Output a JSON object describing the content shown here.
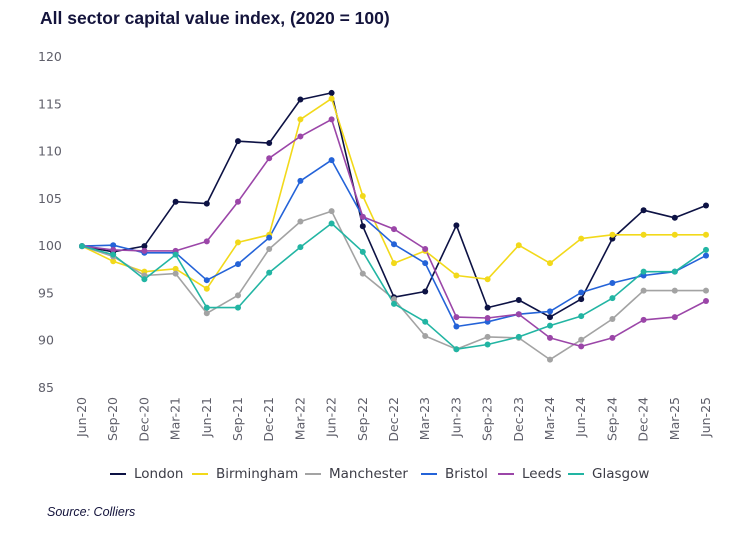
{
  "title": "All sector capital value index, (2020 = 100)",
  "source": "Source: Colliers",
  "chart_data": {
    "type": "line",
    "title": "All sector capital value index, (2020 = 100)",
    "xlabel": "",
    "ylabel": "",
    "ylim": [
      85,
      120
    ],
    "yticks": [
      85,
      90,
      95,
      100,
      105,
      110,
      115,
      120
    ],
    "grid": false,
    "legend_position": "bottom",
    "x": [
      "Jun-20",
      "Sep-20",
      "Dec-20",
      "Mar-21",
      "Jun-21",
      "Sep-21",
      "Dec-21",
      "Mar-22",
      "Jun-22",
      "Sep-22",
      "Dec-22",
      "Mar-23",
      "Jun-23",
      "Sep-23",
      "Dec-23",
      "Mar-24",
      "Jun-24",
      "Sep-24",
      "Dec-24",
      "Mar-25",
      "Jun-25"
    ],
    "series": [
      {
        "name": "London",
        "color": "#0d1244",
        "values": [
          100,
          99.4,
          100.0,
          104.7,
          104.5,
          111.1,
          110.9,
          115.5,
          116.2,
          102.1,
          94.6,
          95.2,
          102.2,
          93.5,
          94.3,
          92.5,
          94.4,
          100.8,
          103.8,
          103.0,
          104.3
        ]
      },
      {
        "name": "Birmingham",
        "color": "#f2d91a",
        "values": [
          100,
          98.4,
          97.3,
          97.6,
          95.5,
          100.4,
          101.2,
          113.4,
          115.6,
          105.3,
          98.2,
          99.5,
          96.9,
          96.5,
          100.1,
          98.2,
          100.8,
          101.2,
          101.2,
          101.2,
          101.2
        ]
      },
      {
        "name": "Manchester",
        "color": "#a3a3a3",
        "values": [
          100,
          98.9,
          96.9,
          97.1,
          92.9,
          94.8,
          99.7,
          102.6,
          103.7,
          97.1,
          94.4,
          90.5,
          89.1,
          90.4,
          90.3,
          88.0,
          90.1,
          92.3,
          95.3,
          95.3,
          95.3
        ]
      },
      {
        "name": "Bristol",
        "color": "#2463d8",
        "values": [
          100,
          100.1,
          99.3,
          99.3,
          96.4,
          98.1,
          100.9,
          106.9,
          109.1,
          103.1,
          100.2,
          98.2,
          91.5,
          92.0,
          92.8,
          93.1,
          95.1,
          96.1,
          96.9,
          97.3,
          99.0
        ]
      },
      {
        "name": "Leeds",
        "color": "#9b46a8",
        "values": [
          100,
          99.6,
          99.5,
          99.5,
          100.5,
          104.7,
          109.3,
          111.6,
          113.4,
          103.1,
          101.8,
          99.7,
          92.5,
          92.4,
          92.8,
          90.3,
          89.4,
          90.3,
          92.2,
          92.5,
          94.2
        ]
      },
      {
        "name": "Glasgow",
        "color": "#22b5a3",
        "values": [
          100,
          99.1,
          96.5,
          99.1,
          93.5,
          93.5,
          97.2,
          99.9,
          102.4,
          99.4,
          93.9,
          92.0,
          89.1,
          89.6,
          90.4,
          91.6,
          92.6,
          94.5,
          97.3,
          97.3,
          99.6
        ]
      }
    ]
  }
}
